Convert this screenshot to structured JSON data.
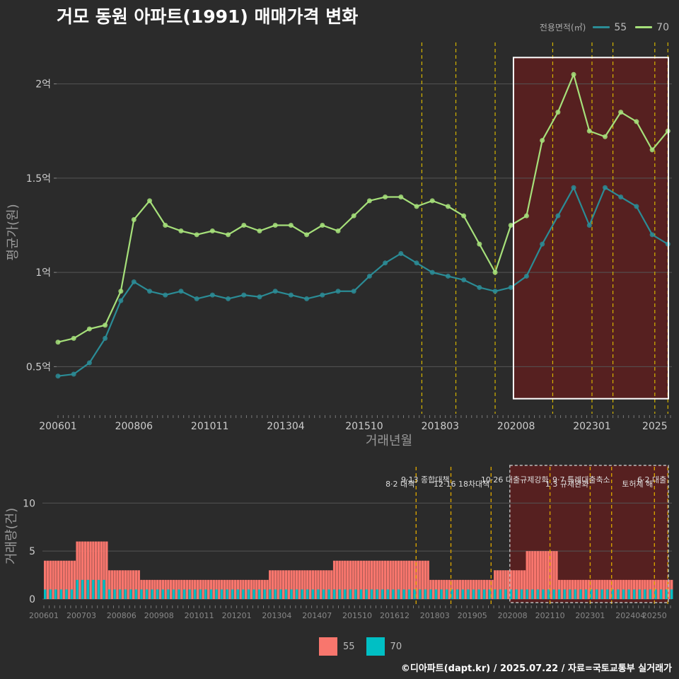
{
  "title": "거모 동원 아파트(1991) 매매가격 변화",
  "legend_top": {
    "title": "전용면적(㎡)",
    "items": [
      {
        "label": "55",
        "color": "#2b8c96"
      },
      {
        "label": "70",
        "color": "#a6e07a"
      }
    ]
  },
  "legend_bottom": {
    "items": [
      {
        "label": "55",
        "color": "#f8766d"
      },
      {
        "label": "70",
        "color": "#00bfc4"
      }
    ]
  },
  "footer": "©디아파트(dapt.kr) / 2025.07.22 / 자료=국토교통부 실거래가",
  "chart_data": [
    {
      "type": "line",
      "title": "거모 동원 아파트(1991) 매매가격 변화",
      "xlabel": "거래년월",
      "ylabel": "평균가(원)",
      "x_tick_labels": [
        "200601",
        "200806",
        "201011",
        "201304",
        "201510",
        "201803",
        "202008",
        "202301",
        "2025"
      ],
      "y_tick_labels": [
        "0.5억",
        "1억",
        "1.5억",
        "2억"
      ],
      "y_ticks": [
        0.5,
        1.0,
        1.5,
        2.0
      ],
      "ylim": [
        0.25,
        2.25
      ],
      "xlim": [
        "2006-01",
        "2025-07"
      ],
      "grid": true,
      "legend_position": "top-right",
      "policy_lines": [
        "2017-08",
        "2018-09",
        "2019-12",
        "2021-10",
        "2023-01",
        "2023-09",
        "2025-01",
        "2025-06"
      ],
      "highlight_box": {
        "x": [
          "2020-07",
          "2025-07"
        ],
        "y": [
          0.33,
          2.14
        ]
      },
      "series": [
        {
          "name": "55",
          "color": "#2b8c96",
          "x": [
            "2006-01",
            "2006-07",
            "2007-01",
            "2007-07",
            "2008-01",
            "2008-06",
            "2008-12",
            "2009-06",
            "2009-12",
            "2010-06",
            "2010-12",
            "2011-06",
            "2011-12",
            "2012-06",
            "2012-12",
            "2013-06",
            "2013-12",
            "2014-06",
            "2014-12",
            "2015-06",
            "2015-12",
            "2016-06",
            "2016-12",
            "2017-06",
            "2017-12",
            "2018-06",
            "2018-12",
            "2019-06",
            "2019-12",
            "2020-06",
            "2020-12",
            "2021-06",
            "2021-12",
            "2022-06",
            "2022-12",
            "2023-06",
            "2023-12",
            "2024-06",
            "2024-12",
            "2025-06"
          ],
          "values": [
            0.45,
            0.46,
            0.52,
            0.65,
            0.85,
            0.95,
            0.9,
            0.88,
            0.9,
            0.86,
            0.88,
            0.86,
            0.88,
            0.87,
            0.9,
            0.88,
            0.86,
            0.88,
            0.9,
            0.9,
            0.98,
            1.05,
            1.1,
            1.05,
            1.0,
            0.98,
            0.96,
            0.92,
            0.9,
            0.92,
            0.98,
            1.15,
            1.3,
            1.45,
            1.25,
            1.45,
            1.4,
            1.35,
            1.2,
            1.15
          ]
        },
        {
          "name": "70",
          "color": "#a6e07a",
          "x": [
            "2006-01",
            "2006-07",
            "2007-01",
            "2007-07",
            "2008-01",
            "2008-06",
            "2008-12",
            "2009-06",
            "2009-12",
            "2010-06",
            "2010-12",
            "2011-06",
            "2011-12",
            "2012-06",
            "2012-12",
            "2013-06",
            "2013-12",
            "2014-06",
            "2014-12",
            "2015-06",
            "2015-12",
            "2016-06",
            "2016-12",
            "2017-06",
            "2017-12",
            "2018-06",
            "2018-12",
            "2019-06",
            "2019-12",
            "2020-06",
            "2020-12",
            "2021-06",
            "2021-12",
            "2022-06",
            "2022-12",
            "2023-06",
            "2023-12",
            "2024-06",
            "2024-12",
            "2025-06"
          ],
          "values": [
            0.63,
            0.65,
            0.7,
            0.72,
            0.9,
            1.28,
            1.38,
            1.25,
            1.22,
            1.2,
            1.22,
            1.2,
            1.25,
            1.22,
            1.25,
            1.25,
            1.2,
            1.25,
            1.22,
            1.3,
            1.38,
            1.4,
            1.4,
            1.35,
            1.38,
            1.35,
            1.3,
            1.15,
            1.0,
            1.25,
            1.3,
            1.7,
            1.85,
            2.05,
            1.75,
            1.72,
            1.85,
            1.8,
            1.65,
            1.75
          ]
        }
      ]
    },
    {
      "type": "bar",
      "ylabel": "거래량(건)",
      "x_tick_labels": [
        "200601",
        "200703",
        "200806",
        "200908",
        "201011",
        "201201",
        "201304",
        "201407",
        "201510",
        "201612",
        "201803",
        "201905",
        "202008",
        "202110",
        "202301",
        "202404",
        "20250"
      ],
      "y_tick_labels": [
        "0",
        "5",
        "10"
      ],
      "y_ticks": [
        0,
        5,
        10
      ],
      "ylim": [
        0,
        14
      ],
      "highlight_box": {
        "x": [
          "2020-07",
          "2025-07"
        ],
        "y": [
          0,
          14
        ]
      },
      "annotations": [
        {
          "date": "2017-08",
          "text": "8·2 대책"
        },
        {
          "date": "2018-09",
          "text": "9·13 종합대책"
        },
        {
          "date": "2019-12",
          "text": "12·16 18차대책"
        },
        {
          "date": "2021-10",
          "text": "10·26 대출규제강화"
        },
        {
          "date": "2023-01",
          "text": "1·3 규제완화"
        },
        {
          "date": "2023-09",
          "text": "9·7 특례대출축소"
        },
        {
          "date": "2025-01",
          "text": "토허제 해"
        },
        {
          "date": "2025-06",
          "text": "6·2 대출"
        }
      ],
      "series": [
        {
          "name": "55",
          "color": "#f8766d",
          "x": [
            "2006",
            "2007",
            "2008",
            "2009",
            "2010",
            "2011",
            "2012",
            "2013",
            "2014",
            "2015",
            "2016",
            "2017",
            "2018",
            "2019",
            "2020",
            "2021",
            "2022",
            "2023",
            "2024",
            "2025"
          ],
          "values": [
            4,
            6,
            3,
            2,
            2,
            2,
            2,
            3,
            3,
            4,
            4,
            4,
            2,
            2,
            3,
            5,
            2,
            2,
            2,
            2
          ]
        },
        {
          "name": "70",
          "color": "#00bfc4",
          "x": [
            "2006",
            "2007",
            "2008",
            "2009",
            "2010",
            "2011",
            "2012",
            "2013",
            "2014",
            "2015",
            "2016",
            "2017",
            "2018",
            "2019",
            "2020",
            "2021",
            "2022",
            "2023",
            "2024",
            "2025"
          ],
          "values": [
            1,
            2,
            1,
            1,
            1,
            1,
            1,
            1,
            1,
            1,
            1,
            1,
            1,
            1,
            1,
            1,
            1,
            1,
            1,
            1
          ]
        }
      ]
    }
  ]
}
